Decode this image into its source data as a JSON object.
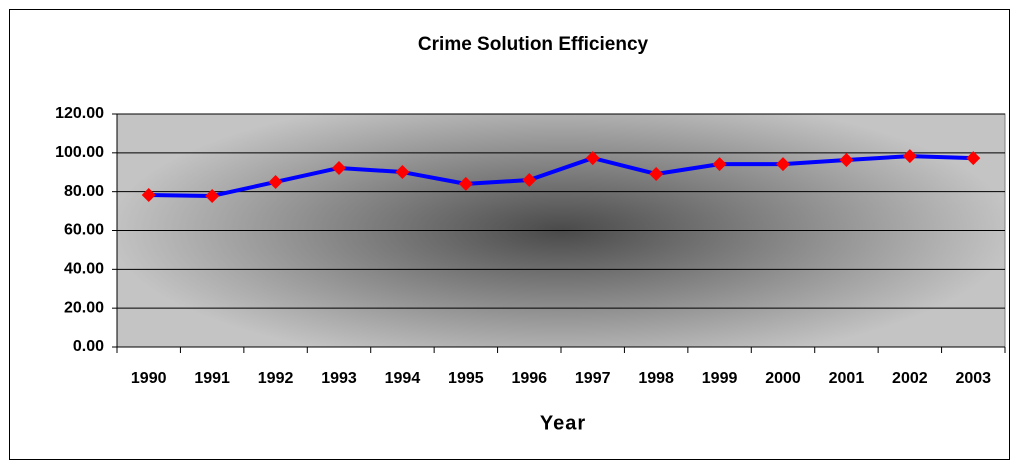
{
  "chart_data": {
    "type": "line",
    "title": "Crime Solution Efficiency",
    "x_label": "Year",
    "categories": [
      "1990",
      "1991",
      "1992",
      "1993",
      "1994",
      "1995",
      "1996",
      "1997",
      "1998",
      "1999",
      "2000",
      "2001",
      "2002",
      "2003"
    ],
    "series": [
      {
        "color": "#0000ff",
        "marker_color": "#ff0000",
        "values": [
          78.3,
          77.8,
          85,
          92.2,
          90.1,
          84,
          86,
          97.3,
          89.1,
          94.2,
          94.2,
          96.3,
          98.3,
          97.3
        ]
      }
    ],
    "ylim": [
      0,
      120
    ],
    "yticks": [
      {
        "value": 0,
        "label": "0.00"
      },
      {
        "value": 20,
        "label": "20.00"
      },
      {
        "value": 40,
        "label": "40.00"
      },
      {
        "value": 60,
        "label": "60.00"
      },
      {
        "value": 80,
        "label": "80.00"
      },
      {
        "value": 100,
        "label": "100.00"
      },
      {
        "value": 120,
        "label": "120.00"
      }
    ],
    "grid": true
  }
}
